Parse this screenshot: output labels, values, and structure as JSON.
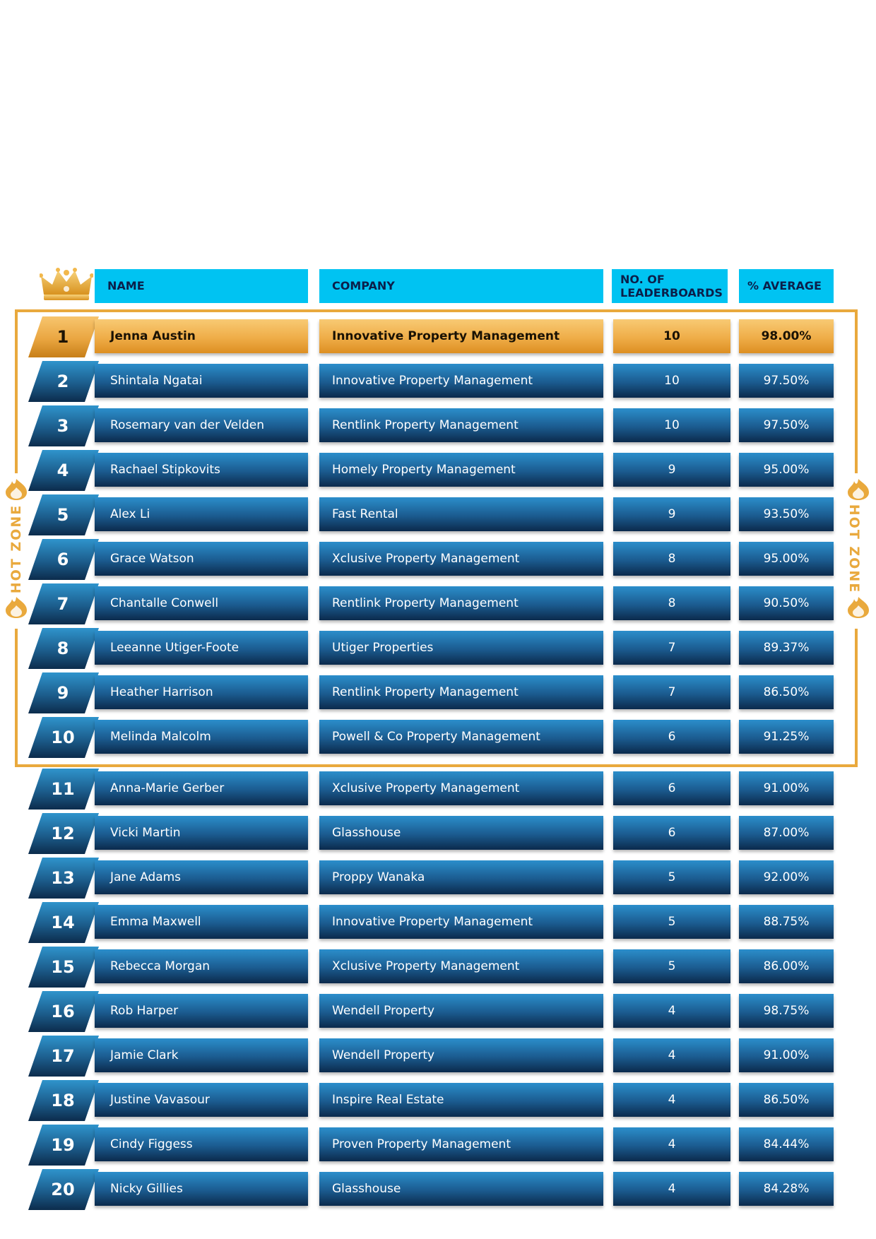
{
  "header": {
    "name": "NAME",
    "company": "COMPANY",
    "boards_line1": "NO. OF",
    "boards_line2": "LEADERBOARDS",
    "average": "% AVERAGE"
  },
  "hot_zone": {
    "label": "HOT ZONE",
    "color": "#e9a93d"
  },
  "colors": {
    "header": "#00c3f2",
    "gold": "#efad48",
    "blue_top": "#2b8ecb",
    "blue_bottom": "#0b2a4c"
  },
  "rows": [
    {
      "rank": "1",
      "name": "Jenna Austin",
      "company": "Innovative Property Management",
      "boards": "10",
      "average": "98.00%"
    },
    {
      "rank": "2",
      "name": "Shintala Ngatai",
      "company": "Innovative Property Management",
      "boards": "10",
      "average": "97.50%"
    },
    {
      "rank": "3",
      "name": "Rosemary van der Velden",
      "company": "Rentlink Property Management",
      "boards": "10",
      "average": "97.50%"
    },
    {
      "rank": "4",
      "name": "Rachael Stipkovits",
      "company": "Homely Property Management",
      "boards": "9",
      "average": "95.00%"
    },
    {
      "rank": "5",
      "name": "Alex Li",
      "company": "Fast Rental",
      "boards": "9",
      "average": "93.50%"
    },
    {
      "rank": "6",
      "name": "Grace Watson",
      "company": "Xclusive Property Management",
      "boards": "8",
      "average": "95.00%"
    },
    {
      "rank": "7",
      "name": "Chantalle Conwell",
      "company": "Rentlink Property Management",
      "boards": "8",
      "average": "90.50%"
    },
    {
      "rank": "8",
      "name": "Leeanne Utiger-Foote",
      "company": "Utiger Properties",
      "boards": "7",
      "average": "89.37%"
    },
    {
      "rank": "9",
      "name": "Heather Harrison",
      "company": "Rentlink Property Management",
      "boards": "7",
      "average": "86.50%"
    },
    {
      "rank": "10",
      "name": "Melinda Malcolm",
      "company": "Powell & Co Property Management",
      "boards": "6",
      "average": "91.25%"
    },
    {
      "rank": "11",
      "name": "Anna-Marie Gerber",
      "company": "Xclusive Property Management",
      "boards": "6",
      "average": "91.00%"
    },
    {
      "rank": "12",
      "name": "Vicki Martin",
      "company": "Glasshouse",
      "boards": "6",
      "average": "87.00%"
    },
    {
      "rank": "13",
      "name": "Jane Adams",
      "company": "Proppy Wanaka",
      "boards": "5",
      "average": "92.00%"
    },
    {
      "rank": "14",
      "name": "Emma Maxwell",
      "company": "Innovative Property Management",
      "boards": "5",
      "average": "88.75%"
    },
    {
      "rank": "15",
      "name": "Rebecca Morgan",
      "company": "Xclusive Property Management",
      "boards": "5",
      "average": "86.00%"
    },
    {
      "rank": "16",
      "name": "Rob Harper",
      "company": "Wendell Property",
      "boards": "4",
      "average": "98.75%"
    },
    {
      "rank": "17",
      "name": "Jamie Clark",
      "company": "Wendell Property",
      "boards": "4",
      "average": "91.00%"
    },
    {
      "rank": "18",
      "name": "Justine Vavasour",
      "company": "Inspire Real Estate",
      "boards": "4",
      "average": "86.50%"
    },
    {
      "rank": "19",
      "name": "Cindy Figgess",
      "company": "Proven Property Management",
      "boards": "4",
      "average": "84.44%"
    },
    {
      "rank": "20",
      "name": "Nicky Gillies",
      "company": "Glasshouse",
      "boards": "4",
      "average": "84.28%"
    }
  ]
}
